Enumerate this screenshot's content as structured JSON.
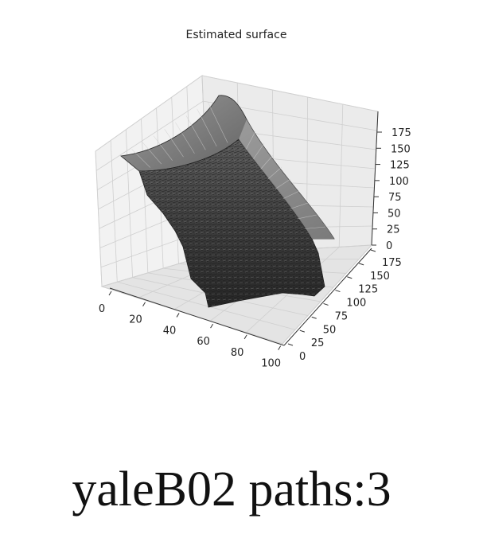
{
  "chart_data": {
    "type": "surface",
    "title": "Estimated surface",
    "xlabel": "",
    "ylabel": "",
    "zlabel": "",
    "x_ticks": [
      "0",
      "20",
      "40",
      "60",
      "80",
      "100"
    ],
    "y_ticks": [
      "0",
      "25",
      "50",
      "75",
      "100",
      "125",
      "150",
      "175"
    ],
    "z_ticks": [
      "0",
      "25",
      "50",
      "75",
      "100",
      "125",
      "150",
      "175"
    ],
    "xlim": [
      0,
      100
    ],
    "ylim": [
      0,
      175
    ],
    "zlim": [
      0,
      175
    ],
    "grid": true,
    "colormap": "grayscale",
    "pane_color": "#f2f2f2"
  },
  "caption": "yaleB02 paths:3"
}
